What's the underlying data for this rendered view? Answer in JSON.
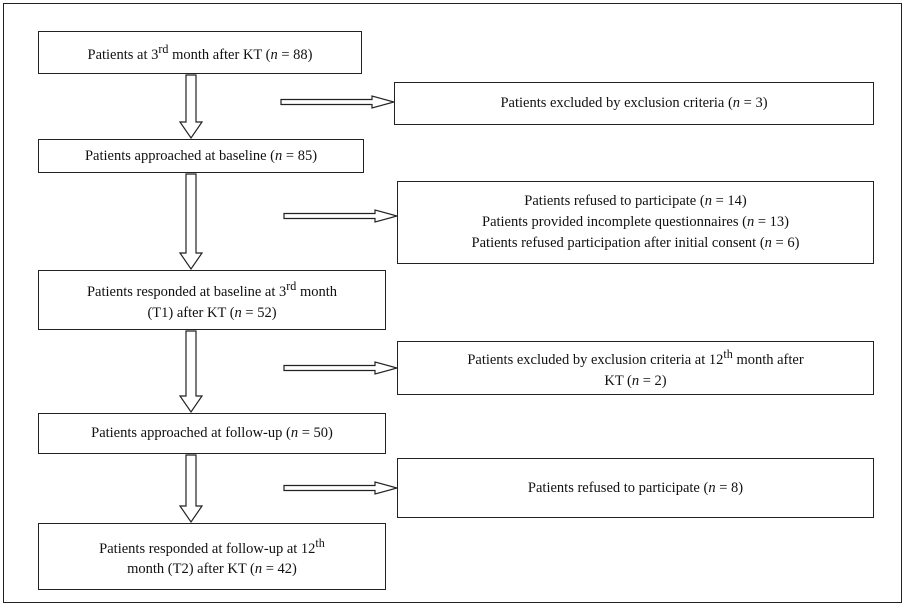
{
  "boxes": {
    "b1": {
      "lines": [
        "Patients at 3rd month after KT (n = 88)"
      ]
    },
    "e1": {
      "lines": [
        "Patients excluded by exclusion criteria (n = 3)"
      ]
    },
    "b2": {
      "lines": [
        "Patients approached at baseline (n = 85)"
      ]
    },
    "e2": {
      "lines": [
        "Patients refused to participate (n = 14)",
        "Patients provided incomplete questionnaires (n = 13)",
        "Patients refused participation after initial consent (n = 6)"
      ]
    },
    "b3": {
      "lines": [
        "Patients responded at baseline at 3rd month",
        "(T1) after KT (n = 52)"
      ]
    },
    "e3": {
      "lines": [
        "Patients excluded by exclusion criteria at 12th month after",
        "KT (n = 2)"
      ]
    },
    "b4": {
      "lines": [
        "Patients approached at follow-up (n = 50)"
      ]
    },
    "e4": {
      "lines": [
        "Patients refused to participate (n = 8)"
      ]
    },
    "b5": {
      "lines": [
        "Patients responded at follow-up at 12th",
        "month (T2) after KT (n = 42)"
      ]
    }
  }
}
